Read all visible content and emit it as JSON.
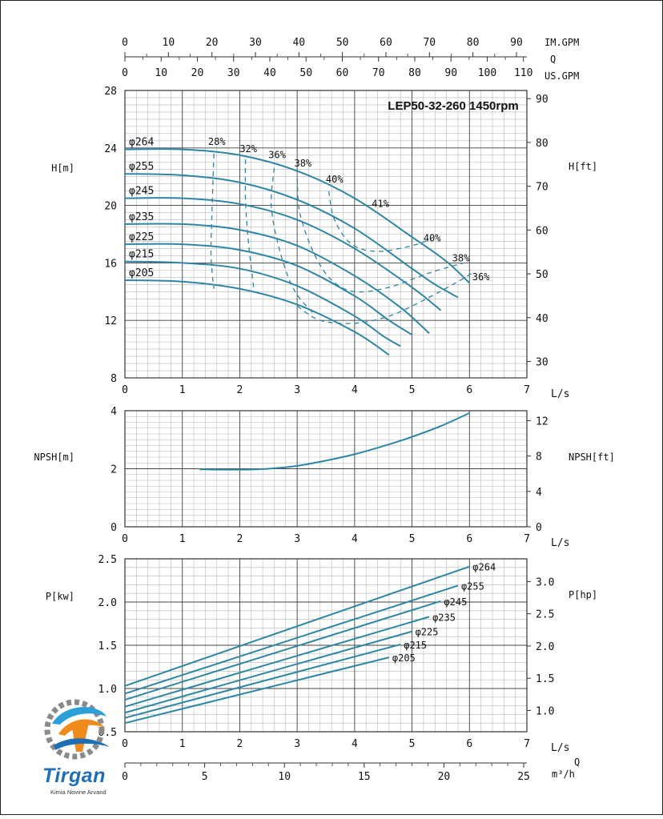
{
  "colors": {
    "curve": "#2e86a4",
    "grid_major": "#444444",
    "grid_minor": "#b8b8b8",
    "frame": "#333333"
  },
  "top_axes": {
    "im_gpm": {
      "label": "IM.GPM",
      "ticks": [
        "0",
        "10",
        "20",
        "30",
        "40",
        "50",
        "60",
        "70",
        "80",
        "90"
      ],
      "per_ls": 13.2
    },
    "q_label": "Q",
    "us_gpm": {
      "label": "US.GPM",
      "ticks": [
        "0",
        "10",
        "20",
        "30",
        "40",
        "50",
        "60",
        "70",
        "80",
        "90",
        "100",
        "110"
      ],
      "per_ls": 15.85
    }
  },
  "bottom_axis": {
    "q_label": "Q",
    "m3h_label": "m³/h",
    "ticks": [
      "0",
      "5",
      "10",
      "15",
      "20",
      "25"
    ],
    "per_ls": 3.6
  },
  "chart_data": [
    {
      "type": "line",
      "title": "LEP50-32-260 1450rpm",
      "xlabel": "L/s",
      "ylabel": "H[m]",
      "ylabel_right": "H[ft]",
      "xlim": [
        0,
        7
      ],
      "ylim": [
        8,
        28
      ],
      "x_ticks": [
        "0",
        "1",
        "2",
        "3",
        "4",
        "5",
        "6",
        "7"
      ],
      "y_ticks": [
        "8",
        "12",
        "16",
        "20",
        "24",
        "28"
      ],
      "y_right_ticks": [
        "30",
        "40",
        "50",
        "60",
        "70",
        "80",
        "90"
      ],
      "grid": true,
      "series": [
        {
          "name": "φ264",
          "points": [
            [
              0,
              23.9
            ],
            [
              1,
              23.9
            ],
            [
              2,
              23.5
            ],
            [
              3,
              22.4
            ],
            [
              4,
              20.5
            ],
            [
              5,
              17.8
            ],
            [
              5.6,
              16.1
            ],
            [
              6,
              14.6
            ]
          ]
        },
        {
          "name": "φ255",
          "points": [
            [
              0,
              22.2
            ],
            [
              1,
              22.1
            ],
            [
              2,
              21.6
            ],
            [
              3,
              20.4
            ],
            [
              4,
              18.4
            ],
            [
              5,
              15.6
            ],
            [
              5.4,
              14.5
            ],
            [
              5.8,
              13.6
            ]
          ]
        },
        {
          "name": "φ245",
          "points": [
            [
              0,
              20.5
            ],
            [
              1,
              20.5
            ],
            [
              2,
              20.1
            ],
            [
              3,
              19.0
            ],
            [
              4,
              17.0
            ],
            [
              5,
              14.3
            ],
            [
              5.5,
              12.7
            ]
          ]
        },
        {
          "name": "φ235",
          "points": [
            [
              0,
              18.7
            ],
            [
              1,
              18.7
            ],
            [
              2,
              18.3
            ],
            [
              3,
              17.2
            ],
            [
              4,
              15.1
            ],
            [
              4.8,
              12.9
            ],
            [
              5.3,
              11.1
            ]
          ]
        },
        {
          "name": "φ225",
          "points": [
            [
              0,
              17.3
            ],
            [
              1,
              17.3
            ],
            [
              2,
              16.9
            ],
            [
              3,
              15.8
            ],
            [
              4,
              13.7
            ],
            [
              4.6,
              12.0
            ],
            [
              5.0,
              11.0
            ]
          ]
        },
        {
          "name": "φ215",
          "points": [
            [
              0,
              16.1
            ],
            [
              1,
              16.0
            ],
            [
              2,
              15.6
            ],
            [
              3,
              14.4
            ],
            [
              4,
              12.3
            ],
            [
              4.5,
              10.9
            ],
            [
              4.8,
              10.2
            ]
          ]
        },
        {
          "name": "φ205",
          "points": [
            [
              0,
              14.8
            ],
            [
              1,
              14.7
            ],
            [
              2,
              14.2
            ],
            [
              3,
              13.1
            ],
            [
              4,
              11.2
            ],
            [
              4.6,
              9.6
            ]
          ]
        }
      ],
      "efficiency_labels": [
        {
          "text": "28%",
          "x": 1.6,
          "y": 24.2
        },
        {
          "text": "32%",
          "x": 2.15,
          "y": 23.7
        },
        {
          "text": "36%",
          "x": 2.65,
          "y": 23.3
        },
        {
          "text": "38%",
          "x": 3.1,
          "y": 22.7
        },
        {
          "text": "40%",
          "x": 3.65,
          "y": 21.6
        },
        {
          "text": "41%",
          "x": 4.45,
          "y": 19.9
        },
        {
          "text": "40%",
          "x": 5.35,
          "y": 17.5
        },
        {
          "text": "38%",
          "x": 5.85,
          "y": 16.1
        },
        {
          "text": "36%",
          "x": 6.2,
          "y": 14.8
        }
      ],
      "efficiency_lines": [
        {
          "name": "28%",
          "points": [
            [
              1.55,
              23.6
            ],
            [
              1.52,
              20
            ],
            [
              1.5,
              16.5
            ],
            [
              1.55,
              14.2
            ]
          ]
        },
        {
          "name": "32%",
          "points": [
            [
              2.1,
              23.2
            ],
            [
              2.1,
              20.4
            ],
            [
              2.15,
              17.5
            ],
            [
              2.25,
              14.0
            ]
          ]
        },
        {
          "name": "36%",
          "points": [
            [
              2.6,
              22.6
            ],
            [
              2.55,
              19.9
            ],
            [
              2.7,
              16.8
            ],
            [
              2.95,
              14.1
            ],
            [
              3.3,
              12.4
            ]
          ]
        },
        {
          "name": "38%",
          "points": [
            [
              3.0,
              21.9
            ],
            [
              3.05,
              19.4
            ],
            [
              3.3,
              16.6
            ],
            [
              3.6,
              14.8
            ],
            [
              4.0,
              14.0
            ],
            [
              4.6,
              14.3
            ],
            [
              5.3,
              15.3
            ],
            [
              5.9,
              16.0
            ]
          ]
        },
        {
          "name": "40%",
          "points": [
            [
              3.55,
              21.0
            ],
            [
              3.65,
              19.0
            ],
            [
              3.95,
              17.3
            ],
            [
              4.4,
              16.8
            ],
            [
              5.0,
              17.2
            ],
            [
              5.35,
              17.7
            ]
          ]
        },
        {
          "name": "36%",
          "points": [
            [
              3.0,
              13.0
            ],
            [
              3.4,
              12.0
            ],
            [
              4.0,
              11.8
            ],
            [
              4.6,
              12.3
            ],
            [
              5.2,
              13.4
            ],
            [
              5.8,
              14.7
            ],
            [
              6.05,
              15.3
            ]
          ]
        }
      ]
    },
    {
      "type": "line",
      "xlabel": "L/s",
      "ylabel": "NPSH[m]",
      "ylabel_right": "NPSH[ft]",
      "xlim": [
        0,
        7
      ],
      "ylim": [
        0,
        4
      ],
      "x_ticks": [
        "0",
        "1",
        "2",
        "3",
        "4",
        "5",
        "6",
        "7"
      ],
      "y_ticks": [
        "0",
        "2",
        "4"
      ],
      "y_right_ticks": [
        "0",
        "4",
        "8",
        "12"
      ],
      "grid": true,
      "series": [
        {
          "points": [
            [
              1.3,
              1.98
            ],
            [
              2,
              1.97
            ],
            [
              2.5,
              2.0
            ],
            [
              3,
              2.1
            ],
            [
              3.5,
              2.28
            ],
            [
              4,
              2.5
            ],
            [
              4.5,
              2.78
            ],
            [
              5,
              3.1
            ],
            [
              5.5,
              3.47
            ],
            [
              6,
              3.92
            ]
          ]
        }
      ]
    },
    {
      "type": "line",
      "xlabel": "L/s",
      "ylabel": "P[kw]",
      "ylabel_right": "P[hp]",
      "xlim": [
        0,
        7
      ],
      "ylim": [
        0.5,
        2.5
      ],
      "x_ticks": [
        "0",
        "1",
        "2",
        "3",
        "4",
        "5",
        "6",
        "7"
      ],
      "y_ticks": [
        "0.5",
        "1.0",
        "1.5",
        "2.0",
        "2.5"
      ],
      "y_right_ticks": [
        "1.0",
        "1.5",
        "2.0",
        "2.5",
        "3.0"
      ],
      "grid": true,
      "series": [
        {
          "name": "φ264",
          "points": [
            [
              0,
              1.03
            ],
            [
              6,
              2.41
            ]
          ]
        },
        {
          "name": "φ255",
          "points": [
            [
              0,
              0.94
            ],
            [
              5.8,
              2.19
            ]
          ]
        },
        {
          "name": "φ245",
          "points": [
            [
              0,
              0.87
            ],
            [
              5.5,
              2.01
            ]
          ]
        },
        {
          "name": "φ235",
          "points": [
            [
              0,
              0.79
            ],
            [
              5.3,
              1.83
            ]
          ]
        },
        {
          "name": "φ225",
          "points": [
            [
              0,
              0.72
            ],
            [
              5.0,
              1.66
            ]
          ]
        },
        {
          "name": "φ215",
          "points": [
            [
              0,
              0.66
            ],
            [
              4.8,
              1.51
            ]
          ]
        },
        {
          "name": "φ205",
          "points": [
            [
              0,
              0.6
            ],
            [
              4.6,
              1.36
            ]
          ]
        }
      ]
    }
  ],
  "logo": {
    "name": "Tirgan",
    "subtitle": "Kimia Novine Arvand"
  }
}
